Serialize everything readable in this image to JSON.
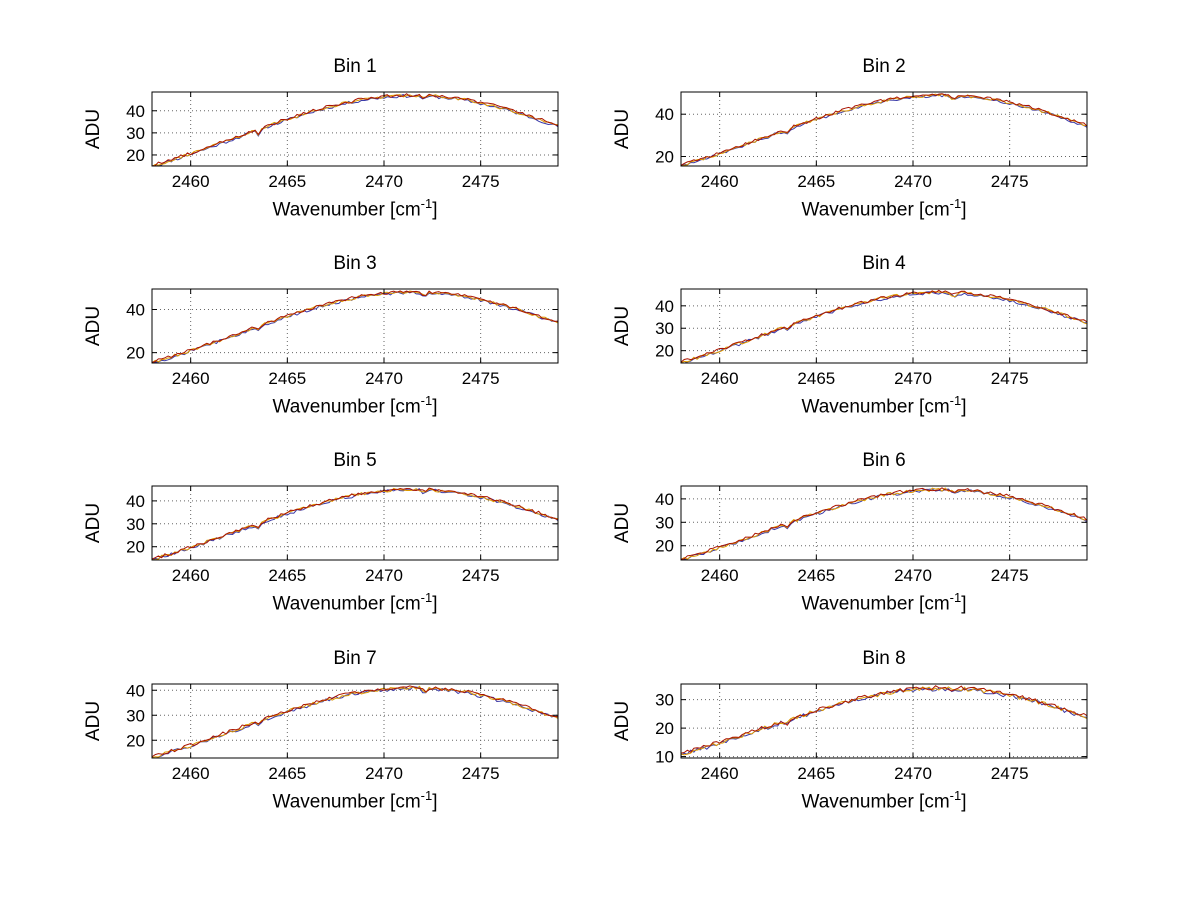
{
  "figure": {
    "background": "#ffffff",
    "ylabel": "ADU",
    "xlabel_pre": "Wavenumber [cm",
    "xlabel_sup": "-1",
    "xlabel_post": "]"
  },
  "chart_data": [
    {
      "type": "line",
      "title": "Bin 1",
      "xlabel": "Wavenumber [cm⁻¹]",
      "ylabel": "ADU",
      "x_start": 2458,
      "x_step": 0.5,
      "xlim": [
        2458,
        2479
      ],
      "ylim": [
        15,
        48.5
      ],
      "x_ticks": [
        2460,
        2465,
        2470,
        2475
      ],
      "y_ticks": [
        20,
        30,
        40
      ],
      "grid": true,
      "n_traces": 3,
      "trace_colors": [
        "#3a3aa8",
        "#dd9900",
        "#aa1400"
      ],
      "noise_amplitude": 0.7,
      "dips": [
        {
          "x": 2463.5,
          "depth": 2.0,
          "width": 0.15
        },
        {
          "x": 2472.1,
          "depth": 1.6,
          "width": 0.15
        }
      ],
      "y": [
        15.0,
        16.3,
        17.7,
        19.1,
        20.6,
        22.1,
        23.6,
        25.2,
        26.7,
        28.3,
        29.9,
        31.5,
        33.1,
        34.6,
        36.1,
        37.5,
        38.9,
        40.2,
        41.4,
        42.5,
        43.5,
        44.4,
        45.2,
        45.8,
        46.3,
        46.7,
        46.9,
        47.0,
        46.9,
        46.7,
        46.3,
        45.8,
        45.2,
        44.4,
        43.5,
        42.5,
        41.4,
        40.2,
        38.9,
        37.5,
        36.1,
        34.6,
        33.1
      ]
    },
    {
      "type": "line",
      "title": "Bin 2",
      "xlabel": "Wavenumber [cm⁻¹]",
      "ylabel": "ADU",
      "x_start": 2458,
      "x_step": 0.5,
      "xlim": [
        2458,
        2479
      ],
      "ylim": [
        15.5,
        50.5
      ],
      "x_ticks": [
        2460,
        2465,
        2470,
        2475
      ],
      "y_ticks": [
        20,
        40
      ],
      "grid": true,
      "n_traces": 3,
      "trace_colors": [
        "#3a3aa8",
        "#dd9900",
        "#aa1400"
      ],
      "noise_amplitude": 0.7,
      "dips": [
        {
          "x": 2463.5,
          "depth": 1.6,
          "width": 0.15
        },
        {
          "x": 2472.1,
          "depth": 2.2,
          "width": 0.15
        }
      ],
      "y": [
        15.7,
        17.0,
        18.5,
        19.9,
        21.4,
        23.0,
        24.6,
        26.2,
        27.9,
        29.5,
        31.2,
        32.8,
        34.5,
        36.1,
        37.6,
        39.1,
        40.6,
        41.9,
        43.2,
        44.3,
        45.4,
        46.3,
        47.1,
        47.8,
        48.3,
        48.7,
        48.9,
        49.0,
        48.9,
        48.7,
        48.3,
        47.8,
        47.1,
        46.3,
        45.4,
        44.3,
        43.2,
        41.9,
        40.6,
        39.1,
        37.6,
        36.1,
        34.5
      ]
    },
    {
      "type": "line",
      "title": "Bin 3",
      "xlabel": "Wavenumber [cm⁻¹]",
      "ylabel": "ADU",
      "x_start": 2458,
      "x_step": 0.5,
      "xlim": [
        2458,
        2479
      ],
      "ylim": [
        15.2,
        49.5
      ],
      "x_ticks": [
        2460,
        2465,
        2470,
        2475
      ],
      "y_ticks": [
        20,
        40
      ],
      "grid": true,
      "n_traces": 3,
      "trace_colors": [
        "#3a3aa8",
        "#dd9900",
        "#aa1400"
      ],
      "noise_amplitude": 0.7,
      "dips": [
        {
          "x": 2463.5,
          "depth": 1.8,
          "width": 0.15
        },
        {
          "x": 2472.1,
          "depth": 1.5,
          "width": 0.15
        }
      ],
      "y": [
        15.4,
        16.7,
        18.1,
        19.5,
        21.0,
        22.5,
        24.1,
        25.7,
        27.3,
        28.9,
        30.6,
        32.2,
        33.8,
        35.3,
        36.9,
        38.3,
        39.7,
        41.1,
        42.3,
        43.4,
        44.5,
        45.4,
        46.2,
        46.8,
        47.3,
        47.7,
        47.9,
        48.0,
        47.9,
        47.7,
        47.3,
        46.8,
        46.2,
        45.4,
        44.5,
        43.4,
        42.3,
        41.1,
        39.7,
        38.3,
        36.9,
        35.3,
        33.8
      ]
    },
    {
      "type": "line",
      "title": "Bin 4",
      "xlabel": "Wavenumber [cm⁻¹]",
      "ylabel": "ADU",
      "x_start": 2458,
      "x_step": 0.5,
      "xlim": [
        2458,
        2479
      ],
      "ylim": [
        14.5,
        47.5
      ],
      "x_ticks": [
        2460,
        2465,
        2470,
        2475
      ],
      "y_ticks": [
        20,
        30,
        40
      ],
      "grid": true,
      "n_traces": 3,
      "trace_colors": [
        "#3a3aa8",
        "#dd9900",
        "#aa1400"
      ],
      "noise_amplitude": 0.7,
      "dips": [
        {
          "x": 2463.5,
          "depth": 2.0,
          "width": 0.15
        },
        {
          "x": 2472.1,
          "depth": 1.4,
          "width": 0.15
        }
      ],
      "y": [
        14.7,
        16.0,
        17.3,
        18.7,
        20.1,
        21.6,
        23.1,
        24.6,
        26.2,
        27.7,
        29.3,
        30.8,
        32.4,
        33.9,
        35.3,
        36.7,
        38.1,
        39.3,
        40.5,
        41.6,
        42.6,
        43.5,
        44.2,
        44.9,
        45.4,
        45.7,
        45.9,
        46.0,
        45.9,
        45.7,
        45.4,
        44.9,
        44.2,
        43.5,
        42.6,
        41.6,
        40.5,
        39.3,
        38.1,
        36.7,
        35.3,
        33.9,
        32.4
      ]
    },
    {
      "type": "line",
      "title": "Bin 5",
      "xlabel": "Wavenumber [cm⁻¹]",
      "ylabel": "ADU",
      "x_start": 2458,
      "x_step": 0.5,
      "xlim": [
        2458,
        2479
      ],
      "ylim": [
        14.2,
        46.5
      ],
      "x_ticks": [
        2460,
        2465,
        2470,
        2475
      ],
      "y_ticks": [
        20,
        30,
        40
      ],
      "grid": true,
      "n_traces": 3,
      "trace_colors": [
        "#3a3aa8",
        "#dd9900",
        "#aa1400"
      ],
      "noise_amplitude": 0.7,
      "dips": [
        {
          "x": 2463.5,
          "depth": 1.7,
          "width": 0.15
        },
        {
          "x": 2472.1,
          "depth": 1.5,
          "width": 0.15
        }
      ],
      "y": [
        14.4,
        15.6,
        16.9,
        18.3,
        19.7,
        21.1,
        22.6,
        24.1,
        25.6,
        27.1,
        28.6,
        30.2,
        31.7,
        33.1,
        34.6,
        35.9,
        37.2,
        38.5,
        39.6,
        40.7,
        41.7,
        42.5,
        43.3,
        43.9,
        44.4,
        44.7,
        44.9,
        45.0,
        44.9,
        44.7,
        44.4,
        43.9,
        43.3,
        42.5,
        41.7,
        40.7,
        39.6,
        38.5,
        37.2,
        35.9,
        34.6,
        33.1,
        31.7
      ]
    },
    {
      "type": "line",
      "title": "Bin 6",
      "xlabel": "Wavenumber [cm⁻¹]",
      "ylabel": "ADU",
      "x_start": 2458,
      "x_step": 0.5,
      "xlim": [
        2458,
        2479
      ],
      "ylim": [
        13.9,
        45.5
      ],
      "x_ticks": [
        2460,
        2465,
        2470,
        2475
      ],
      "y_ticks": [
        20,
        30,
        40
      ],
      "grid": true,
      "n_traces": 3,
      "trace_colors": [
        "#3a3aa8",
        "#dd9900",
        "#aa1400"
      ],
      "noise_amplitude": 0.7,
      "dips": [
        {
          "x": 2463.5,
          "depth": 1.8,
          "width": 0.15
        },
        {
          "x": 2472.1,
          "depth": 1.4,
          "width": 0.15
        }
      ],
      "y": [
        14.1,
        15.3,
        16.6,
        17.9,
        19.3,
        20.7,
        22.1,
        23.6,
        25.0,
        26.5,
        28.0,
        29.5,
        31.0,
        32.4,
        33.8,
        35.1,
        36.4,
        37.6,
        38.8,
        39.8,
        40.8,
        41.6,
        42.3,
        42.9,
        43.4,
        43.7,
        43.9,
        44.0,
        43.9,
        43.7,
        43.4,
        42.9,
        42.3,
        41.6,
        40.8,
        39.8,
        38.8,
        37.6,
        36.4,
        35.1,
        33.8,
        32.4,
        31.0
      ]
    },
    {
      "type": "line",
      "title": "Bin 7",
      "xlabel": "Wavenumber [cm⁻¹]",
      "ylabel": "ADU",
      "x_start": 2458,
      "x_step": 0.5,
      "xlim": [
        2458,
        2479
      ],
      "ylim": [
        12.9,
        42.5
      ],
      "x_ticks": [
        2460,
        2465,
        2470,
        2475
      ],
      "y_ticks": [
        20,
        30,
        40
      ],
      "grid": true,
      "n_traces": 3,
      "trace_colors": [
        "#3a3aa8",
        "#dd9900",
        "#aa1400"
      ],
      "noise_amplitude": 0.7,
      "dips": [
        {
          "x": 2463.5,
          "depth": 1.6,
          "width": 0.15
        },
        {
          "x": 2472.1,
          "depth": 1.5,
          "width": 0.15
        }
      ],
      "y": [
        13.1,
        14.3,
        15.4,
        16.7,
        17.9,
        19.2,
        20.6,
        21.9,
        23.3,
        24.7,
        26.1,
        27.5,
        28.8,
        30.2,
        31.5,
        32.7,
        33.9,
        35.1,
        36.1,
        37.1,
        38.0,
        38.8,
        39.4,
        40.0,
        40.4,
        40.7,
        40.9,
        41.0,
        40.9,
        40.7,
        40.4,
        40.0,
        39.4,
        38.8,
        38.0,
        37.1,
        36.1,
        35.1,
        33.9,
        32.7,
        31.5,
        30.2,
        28.8
      ]
    },
    {
      "type": "line",
      "title": "Bin 8",
      "xlabel": "Wavenumber [cm⁻¹]",
      "ylabel": "ADU",
      "x_start": 2458,
      "x_step": 0.5,
      "xlim": [
        2458,
        2479
      ],
      "ylim": [
        9.5,
        35.5
      ],
      "x_ticks": [
        2460,
        2465,
        2470,
        2475
      ],
      "y_ticks": [
        10,
        20,
        30
      ],
      "grid": true,
      "n_traces": 3,
      "trace_colors": [
        "#3a3aa8",
        "#dd9900",
        "#aa1400"
      ],
      "noise_amplitude": 0.7,
      "dips": [
        {
          "x": 2463.5,
          "depth": 1.4,
          "width": 0.15
        },
        {
          "x": 2472.1,
          "depth": 1.2,
          "width": 0.15
        }
      ],
      "y": [
        10.9,
        11.8,
        12.8,
        13.8,
        14.9,
        16.0,
        17.1,
        18.2,
        19.3,
        20.5,
        21.6,
        22.8,
        23.9,
        25.0,
        26.1,
        27.1,
        28.1,
        29.1,
        30.0,
        30.8,
        31.5,
        32.1,
        32.7,
        33.2,
        33.5,
        33.8,
        33.9,
        34.0,
        33.9,
        33.8,
        33.5,
        33.2,
        32.7,
        32.1,
        31.5,
        30.8,
        30.0,
        29.1,
        28.1,
        27.1,
        26.1,
        25.0,
        23.9
      ]
    }
  ]
}
